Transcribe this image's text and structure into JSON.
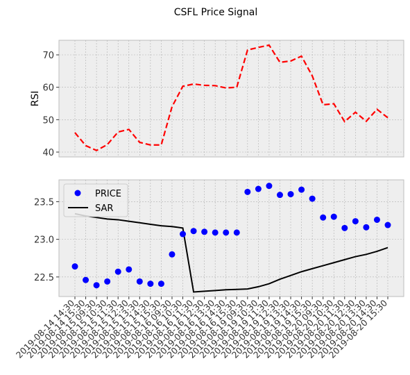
{
  "chart_data": {
    "title": "CSFL Price Signal",
    "x_labels": [
      "2019-08-14 14:30",
      "2019-08-14 15:30",
      "2019-08-15 09:30",
      "2019-08-15 10:30",
      "2019-08-15 11:30",
      "2019-08-15 12:30",
      "2019-08-15 13:30",
      "2019-08-15 14:30",
      "2019-08-15 15:30",
      "2019-08-16 09:30",
      "2019-08-16 10:30",
      "2019-08-16 11:30",
      "2019-08-16 12:30",
      "2019-08-16 13:30",
      "2019-08-16 14:30",
      "2019-08-16 15:30",
      "2019-08-19 09:30",
      "2019-08-19 10:30",
      "2019-08-19 11:30",
      "2019-08-19 12:30",
      "2019-08-19 13:30",
      "2019-08-19 14:30",
      "2019-08-19 15:30",
      "2019-08-20 09:30",
      "2019-08-20 10:30",
      "2019-08-20 11:30",
      "2019-08-20 12:30",
      "2019-08-20 13:30",
      "2019-08-20 14:30",
      "2019-08-20 15:30"
    ],
    "top": {
      "type": "line",
      "ylabel": "RSI",
      "ylim": [
        38.5,
        74.5
      ],
      "yticks": [
        40,
        50,
        60,
        70
      ],
      "grid": true,
      "series": [
        {
          "values": [
            46.0,
            42.0,
            40.5,
            42.3,
            46.2,
            47.0,
            43.0,
            42.2,
            42.2,
            54.0,
            60.3,
            61.0,
            60.6,
            60.5,
            59.8,
            60.0,
            71.5,
            72.3,
            73.0,
            67.7,
            68.1,
            69.6,
            63.5,
            54.6,
            54.9,
            49.4,
            52.3,
            49.5,
            53.2,
            50.6
          ],
          "color": "#ff0000",
          "style": "dashed"
        }
      ]
    },
    "bottom": {
      "type": "scatter+line",
      "ylim": [
        22.24,
        23.79
      ],
      "yticks": [
        22.5,
        23.0,
        23.5
      ],
      "grid": true,
      "legend_position": "upper-left",
      "series": [
        {
          "name": "PRICE",
          "type": "scatter",
          "color": "#0000ff",
          "values": [
            22.64,
            22.46,
            22.39,
            22.44,
            22.57,
            22.6,
            22.44,
            22.41,
            22.41,
            22.8,
            23.07,
            23.11,
            23.1,
            23.09,
            23.09,
            23.09,
            23.63,
            23.67,
            23.71,
            23.59,
            23.6,
            23.66,
            23.54,
            23.29,
            23.3,
            23.15,
            23.24,
            23.16,
            23.26,
            23.19
          ]
        },
        {
          "name": "SAR",
          "type": "line",
          "color": "#000000",
          "values": [
            23.34,
            23.31,
            23.29,
            23.27,
            23.26,
            23.24,
            23.22,
            23.2,
            23.18,
            23.17,
            23.15,
            22.3,
            22.31,
            22.32,
            22.33,
            22.335,
            22.34,
            22.37,
            22.41,
            22.47,
            22.52,
            22.57,
            22.61,
            22.65,
            22.69,
            22.73,
            22.77,
            22.8,
            22.84,
            22.89
          ]
        }
      ]
    }
  }
}
